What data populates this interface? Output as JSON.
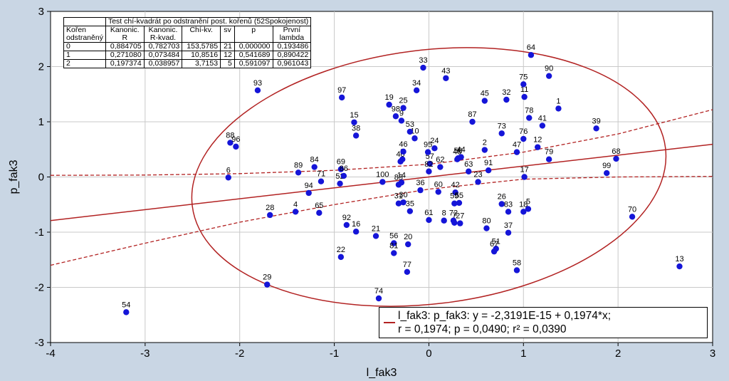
{
  "table": {
    "title": "Test chí-kvadrát po odstranění post. kořenů (52Spokojenost)",
    "row_header": [
      "Kořen",
      "odstraněný"
    ],
    "columns": [
      {
        "l1": "Kanonic.",
        "l2": "R"
      },
      {
        "l1": "Kanonic.",
        "l2": "R-kvad."
      },
      {
        "l1": "Chí-kv.",
        "l2": ""
      },
      {
        "l1": "sv",
        "l2": ""
      },
      {
        "l1": "p",
        "l2": ""
      },
      {
        "l1": "První",
        "l2": "lambda"
      }
    ],
    "rows": [
      [
        "0",
        "0,884705",
        "0,782703",
        "153,5785",
        "21",
        "0,000000",
        "0,193486"
      ],
      [
        "1",
        "0,271080",
        "0,073484",
        "10,8516",
        "12",
        "0,541689",
        "0,890422"
      ],
      [
        "2",
        "0,197374",
        "0,038957",
        "3,7153",
        "5",
        "0,591097",
        "0,961043"
      ]
    ]
  },
  "regression": {
    "line1": "l_fak3:  p_fak3:   y = -2,3191E-15 + 0,1974*x;",
    "line2": "r = 0,1974; p = 0,0490; r² = 0,0390"
  },
  "colors": {
    "background": "#c9d6e4",
    "plot_bg": "#ffffff",
    "points": "#1515d8",
    "fit": "#b22222"
  },
  "chart_data": {
    "type": "scatter",
    "xlabel": "l_fak3",
    "ylabel": "p_fak3",
    "xlim": [
      -4,
      3
    ],
    "ylim": [
      -3,
      3
    ],
    "xticks": [
      -4,
      -3,
      -2,
      -1,
      0,
      1,
      2,
      3
    ],
    "yticks": [
      -3,
      -2,
      -1,
      0,
      1,
      2,
      3
    ],
    "grid": true,
    "fit": {
      "intercept": 0,
      "slope": 0.1974
    },
    "ellipse": {
      "cx": 0,
      "cy": 0,
      "rx": 2.52,
      "ry": 2.3,
      "angle_deg": 7
    },
    "confidence_upper": [
      [
        -4,
        0.03
      ],
      [
        -3,
        0.035
      ],
      [
        -2,
        0.06
      ],
      [
        -1,
        0.12
      ],
      [
        0,
        0.23
      ],
      [
        1,
        0.45
      ],
      [
        2,
        0.78
      ],
      [
        3,
        1.22
      ]
    ],
    "confidence_lower": [
      [
        -4,
        -1.6
      ],
      [
        -3,
        -1.2
      ],
      [
        -2,
        -0.82
      ],
      [
        -1,
        -0.5
      ],
      [
        0,
        -0.22
      ],
      [
        1,
        -0.04
      ],
      [
        2,
        0.0
      ],
      [
        3,
        0.01
      ]
    ],
    "points": [
      {
        "id": "1",
        "x": 1.37,
        "y": 1.24
      },
      {
        "id": "2",
        "x": 0.59,
        "y": 0.49
      },
      {
        "id": "3",
        "x": -0.28,
        "y": 0.32
      },
      {
        "id": "4",
        "x": -1.41,
        "y": -0.63
      },
      {
        "id": "5",
        "x": 1.05,
        "y": -0.58
      },
      {
        "id": "6",
        "x": -2.12,
        "y": -0.01
      },
      {
        "id": "7",
        "x": 0.27,
        "y": -0.83
      },
      {
        "id": "8",
        "x": 0.16,
        "y": -0.79
      },
      {
        "id": "9",
        "x": -0.29,
        "y": 1.02
      },
      {
        "id": "10",
        "x": -0.15,
        "y": 0.7
      },
      {
        "id": "11",
        "x": 1.01,
        "y": 1.45
      },
      {
        "id": "12",
        "x": 1.15,
        "y": 0.54
      },
      {
        "id": "13",
        "x": 2.65,
        "y": -1.62
      },
      {
        "id": "14",
        "x": -0.29,
        "y": -0.1
      },
      {
        "id": "15",
        "x": -0.79,
        "y": 0.99
      },
      {
        "id": "16",
        "x": -0.77,
        "y": -0.99
      },
      {
        "id": "17",
        "x": 1.01,
        "y": 0.0
      },
      {
        "id": "18",
        "x": 1.0,
        "y": -0.63
      },
      {
        "id": "19",
        "x": -0.42,
        "y": 1.31
      },
      {
        "id": "20",
        "x": -0.22,
        "y": -1.22
      },
      {
        "id": "21",
        "x": -0.56,
        "y": -1.07
      },
      {
        "id": "22",
        "x": -0.93,
        "y": -1.45
      },
      {
        "id": "23",
        "x": 0.52,
        "y": -0.09
      },
      {
        "id": "24",
        "x": 0.06,
        "y": 0.52
      },
      {
        "id": "25",
        "x": -0.27,
        "y": 1.25
      },
      {
        "id": "26",
        "x": 0.77,
        "y": -0.49
      },
      {
        "id": "27",
        "x": 0.33,
        "y": -0.84
      },
      {
        "id": "28",
        "x": -1.68,
        "y": -0.69
      },
      {
        "id": "29",
        "x": -1.71,
        "y": -1.95
      },
      {
        "id": "30",
        "x": -0.27,
        "y": -0.46
      },
      {
        "id": "31",
        "x": -0.32,
        "y": -0.48
      },
      {
        "id": "32",
        "x": 0.82,
        "y": 1.4
      },
      {
        "id": "33",
        "x": -0.06,
        "y": 1.98
      },
      {
        "id": "34",
        "x": -0.13,
        "y": 1.57
      },
      {
        "id": "35",
        "x": -0.2,
        "y": -0.62
      },
      {
        "id": "36",
        "x": -0.09,
        "y": -0.24
      },
      {
        "id": "37",
        "x": 0.84,
        "y": -1.01
      },
      {
        "id": "38",
        "x": -0.77,
        "y": 0.75
      },
      {
        "id": "39",
        "x": 1.77,
        "y": 0.88
      },
      {
        "id": "40",
        "x": -0.3,
        "y": 0.28
      },
      {
        "id": "41",
        "x": 1.2,
        "y": 0.93
      },
      {
        "id": "42",
        "x": 0.28,
        "y": -0.28
      },
      {
        "id": "43",
        "x": 0.18,
        "y": 1.79
      },
      {
        "id": "44",
        "x": 0.34,
        "y": 0.36
      },
      {
        "id": "45",
        "x": 0.59,
        "y": 1.38
      },
      {
        "id": "46",
        "x": -0.27,
        "y": 0.46
      },
      {
        "id": "47",
        "x": 0.93,
        "y": 0.45
      },
      {
        "id": "48",
        "x": 0.3,
        "y": 0.32
      },
      {
        "id": "50",
        "x": 0.31,
        "y": 0.34
      },
      {
        "id": "51",
        "x": 0.71,
        "y": -1.3
      },
      {
        "id": "52",
        "x": -0.94,
        "y": -0.12
      },
      {
        "id": "53",
        "x": -0.2,
        "y": 0.82
      },
      {
        "id": "54",
        "x": -3.2,
        "y": -2.45
      },
      {
        "id": "55",
        "x": 0.32,
        "y": -0.47
      },
      {
        "id": "56",
        "x": -0.37,
        "y": -1.2
      },
      {
        "id": "57",
        "x": 0.01,
        "y": 0.24
      },
      {
        "id": "58",
        "x": 0.93,
        "y": -1.69
      },
      {
        "id": "59",
        "x": 0.27,
        "y": -0.48
      },
      {
        "id": "60",
        "x": 0.1,
        "y": -0.27
      },
      {
        "id": "61",
        "x": 0.0,
        "y": -0.78
      },
      {
        "id": "62",
        "x": 0.12,
        "y": 0.18
      },
      {
        "id": "63",
        "x": 0.42,
        "y": 0.1
      },
      {
        "id": "64",
        "x": 1.08,
        "y": 2.21
      },
      {
        "id": "65",
        "x": -1.16,
        "y": -0.65
      },
      {
        "id": "67",
        "x": 0.69,
        "y": -1.35
      },
      {
        "id": "68",
        "x": 1.98,
        "y": 0.33
      },
      {
        "id": "69",
        "x": -0.93,
        "y": 0.14
      },
      {
        "id": "70",
        "x": 2.15,
        "y": -0.72
      },
      {
        "id": "71",
        "x": -1.14,
        "y": -0.08
      },
      {
        "id": "72",
        "x": 0.26,
        "y": -0.79
      },
      {
        "id": "73",
        "x": 0.77,
        "y": 0.79
      },
      {
        "id": "74",
        "x": -0.53,
        "y": -2.2
      },
      {
        "id": "75",
        "x": 1.0,
        "y": 1.68
      },
      {
        "id": "76",
        "x": 1.0,
        "y": 0.69
      },
      {
        "id": "77",
        "x": -0.23,
        "y": -1.72
      },
      {
        "id": "78",
        "x": 1.06,
        "y": 1.07
      },
      {
        "id": "79",
        "x": 1.27,
        "y": 0.32
      },
      {
        "id": "80",
        "x": 0.61,
        "y": -0.93
      },
      {
        "id": "81",
        "x": -0.37,
        "y": -1.38
      },
      {
        "id": "82",
        "x": 0.0,
        "y": 0.1
      },
      {
        "id": "83",
        "x": 0.84,
        "y": -0.63
      },
      {
        "id": "84",
        "x": -1.21,
        "y": 0.18
      },
      {
        "id": "85",
        "x": -0.32,
        "y": -0.14
      },
      {
        "id": "86",
        "x": -0.9,
        "y": 0.02
      },
      {
        "id": "87",
        "x": 0.46,
        "y": 1.0
      },
      {
        "id": "88",
        "x": -2.1,
        "y": 0.62
      },
      {
        "id": "89",
        "x": -1.38,
        "y": 0.08
      },
      {
        "id": "90",
        "x": 1.27,
        "y": 1.83
      },
      {
        "id": "91",
        "x": 0.63,
        "y": 0.12
      },
      {
        "id": "92",
        "x": -0.87,
        "y": -0.87
      },
      {
        "id": "93",
        "x": -1.81,
        "y": 1.57
      },
      {
        "id": "94",
        "x": -1.27,
        "y": -0.29
      },
      {
        "id": "95",
        "x": -0.01,
        "y": 0.45
      },
      {
        "id": "96",
        "x": -2.04,
        "y": 0.55
      },
      {
        "id": "97",
        "x": -0.92,
        "y": 1.44
      },
      {
        "id": "98",
        "x": -0.35,
        "y": 1.1
      },
      {
        "id": "99",
        "x": 1.88,
        "y": 0.07
      },
      {
        "id": "100",
        "x": -0.49,
        "y": -0.09
      }
    ]
  }
}
